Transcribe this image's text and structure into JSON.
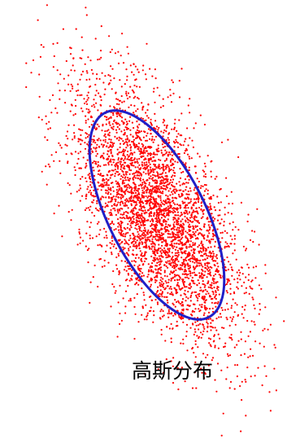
{
  "chart_data": {
    "type": "scatter",
    "annotation": "高斯分布",
    "distribution": {
      "mean": [
        0,
        0
      ],
      "std_major": 1.0,
      "std_minor": 0.42,
      "correlation": "negative",
      "approx_point_count": 4000
    },
    "ellipse": {
      "sigma_level": 1.6
    },
    "colors": {
      "points": "#ff0000",
      "ellipse": "#1f1fc8",
      "annotation": "#000000",
      "background": "#ffffff"
    },
    "grid": false,
    "axes_visible": false,
    "legend": "none"
  }
}
